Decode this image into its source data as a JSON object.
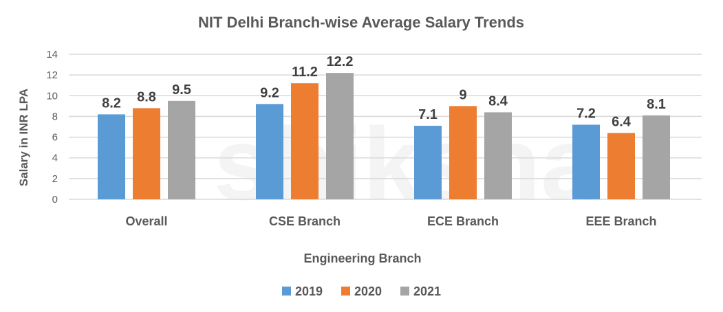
{
  "chart_data": {
    "type": "bar",
    "title": "NIT Delhi Branch-wise Average Salary Trends",
    "xlabel": "Engineering Branch",
    "ylabel": "Salary in INR LPA",
    "categories": [
      "Overall",
      "CSE Branch",
      "ECE Branch",
      "EEE Branch"
    ],
    "series": [
      {
        "name": "2019",
        "color": "#5B9BD5",
        "values": [
          8.2,
          9.2,
          7.1,
          7.2
        ]
      },
      {
        "name": "2020",
        "color": "#ED7D31",
        "values": [
          8.8,
          11.2,
          9,
          6.4
        ]
      },
      {
        "name": "2021",
        "color": "#A5A5A5",
        "values": [
          9.5,
          12.2,
          8.4,
          8.1
        ]
      }
    ],
    "ylim": [
      0,
      14
    ],
    "yticks": [
      0,
      2,
      4,
      6,
      8,
      10,
      12,
      14
    ],
    "grid": true,
    "legend": "bottom",
    "data_labels": true
  },
  "watermark": "shiksha"
}
